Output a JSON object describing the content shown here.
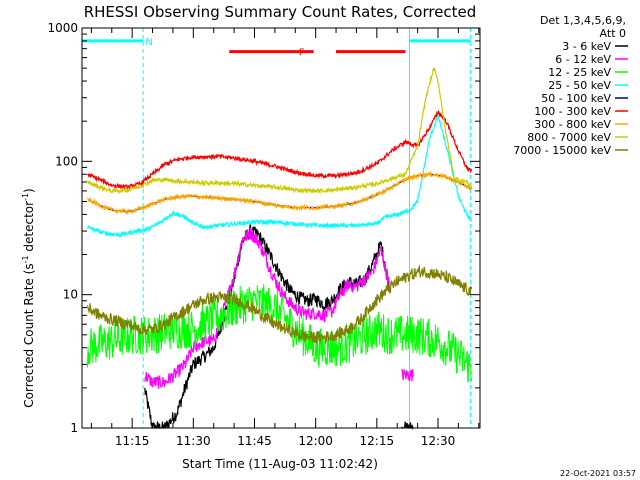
{
  "chart_data": {
    "type": "line",
    "title": "RHESSI Observing Summary Count Rates, Corrected",
    "xlabel": "Start Time (11-Aug-03 11:02:42)",
    "ylabel": "Corrected Count Rate (s",
    "ylabel_sup": "-1",
    "ylabel_mid": " detector",
    "ylabel_sup2": "-1",
    "ylabel_end": ")",
    "y_scale": "log",
    "ylim": [
      1,
      1000
    ],
    "xlim_minutes": [
      662.7,
      760.3
    ],
    "y_ticks": [
      {
        "value": 1,
        "label": "1"
      },
      {
        "value": 10,
        "label": "10"
      },
      {
        "value": 100,
        "label": "100"
      },
      {
        "value": 1000,
        "label": "1000"
      }
    ],
    "x_ticks": [
      {
        "minutes": 675,
        "label": "11:15"
      },
      {
        "minutes": 690,
        "label": "11:30"
      },
      {
        "minutes": 705,
        "label": "11:45"
      },
      {
        "minutes": 720,
        "label": "12:00"
      },
      {
        "minutes": 735,
        "label": "12:15"
      },
      {
        "minutes": 750,
        "label": "12:30"
      }
    ],
    "legend_header": [
      "Det 1,3,4,5,6,9,",
      "Att 0"
    ],
    "legend_placement": "right",
    "series": [
      {
        "name": "3 - 6 keV",
        "color": "#000000",
        "band": "sample",
        "x": [
          664,
          672,
          676,
          678,
          680,
          683,
          686,
          688,
          690,
          693,
          695,
          697,
          700,
          702,
          704,
          706,
          708,
          710,
          712,
          714,
          716,
          718,
          720,
          722,
          724,
          726,
          728,
          730,
          732,
          734,
          736,
          738,
          739,
          741,
          744,
          748,
          752,
          756,
          760
        ],
        "y": [
          null,
          null,
          null,
          2,
          1,
          1,
          1.3,
          2,
          3,
          3.5,
          4,
          6,
          13,
          25,
          30,
          28,
          22,
          17,
          13,
          10.5,
          9.5,
          9,
          9.3,
          8.5,
          9,
          11,
          12.5,
          12,
          13,
          17,
          24,
          12,
          null,
          1,
          1,
          null,
          null,
          null,
          null
        ]
      },
      {
        "name": "6 - 12 keV",
        "color": "#ff00ff",
        "band": "sample",
        "x": [
          664,
          672,
          676,
          678,
          680,
          683,
          686,
          688,
          690,
          693,
          695,
          697,
          700,
          702,
          704,
          706,
          708,
          710,
          712,
          714,
          716,
          718,
          720,
          722,
          724,
          726,
          728,
          730,
          732,
          734,
          736,
          738,
          739,
          741,
          744,
          748,
          752,
          756,
          760
        ],
        "y": [
          null,
          null,
          null,
          2.5,
          2.2,
          2.2,
          2.6,
          3,
          4,
          4.5,
          4.5,
          7,
          14,
          26,
          29,
          25,
          18,
          13,
          10,
          8.5,
          7.5,
          7.2,
          7.3,
          7,
          7.5,
          10,
          12,
          11.5,
          13,
          15,
          22,
          12,
          null,
          2.5,
          2.5,
          null,
          null,
          null,
          null
        ]
      },
      {
        "name": "12 - 25 keV",
        "color": "#00ff00",
        "band": "noisy",
        "x": [
          664,
          670,
          675,
          680,
          685,
          690,
          695,
          700,
          705,
          710,
          715,
          720,
          725,
          730,
          735,
          738,
          740,
          745,
          750,
          755,
          760
        ],
        "y": [
          4,
          4.5,
          5,
          5,
          5.5,
          5.5,
          6.5,
          8,
          9,
          8,
          5.5,
          4,
          4,
          4.5,
          5.5,
          5,
          5,
          5,
          4.5,
          3.5,
          2.5
        ]
      },
      {
        "name": "25 - 50 keV",
        "color": "#00ffff",
        "band": "thin",
        "x": [
          664,
          668,
          672,
          676,
          679,
          682,
          685,
          688,
          690,
          693,
          696,
          700,
          705,
          710,
          715,
          720,
          725,
          730,
          735,
          737,
          740,
          743,
          745,
          748,
          750,
          752,
          755,
          757,
          760
        ],
        "y": [
          32,
          29,
          28,
          30,
          31,
          35,
          41,
          38,
          34,
          32,
          33,
          34,
          35,
          35,
          34,
          33,
          33,
          33,
          34,
          38,
          40,
          43,
          50,
          150,
          220,
          130,
          55,
          40,
          30
        ]
      },
      {
        "name": "50 - 100 keV",
        "color": "#00007f",
        "band": "none",
        "x": [
          664,
          667,
          670,
          674,
          677,
          680,
          683,
          686,
          689,
          692,
          696,
          700,
          705,
          710,
          715,
          720,
          725,
          730,
          735,
          739,
          742,
          745,
          748,
          751,
          754,
          757,
          760
        ],
        "y": [
          52,
          47,
          43,
          42,
          44,
          48,
          52,
          54,
          55,
          54,
          53,
          52,
          50,
          47,
          45,
          45,
          46,
          49,
          56,
          65,
          73,
          78,
          80,
          78,
          72,
          65,
          58
        ]
      },
      {
        "name": "100 - 300 keV",
        "color": "#ff0000",
        "band": "thin",
        "x": [
          664,
          667,
          670,
          674,
          677,
          680,
          683,
          686,
          689,
          692,
          696,
          700,
          705,
          710,
          715,
          720,
          725,
          730,
          735,
          739,
          742,
          745,
          748,
          750,
          752,
          755,
          757,
          760
        ],
        "y": [
          80,
          73,
          66,
          64,
          68,
          80,
          95,
          103,
          107,
          108,
          109,
          106,
          100,
          92,
          83,
          78,
          78,
          82,
          96,
          122,
          140,
          130,
          180,
          235,
          200,
          120,
          90,
          78
        ]
      },
      {
        "name": "300 - 800 keV",
        "color": "#ffa500",
        "band": "thin",
        "x": [
          664,
          667,
          670,
          674,
          677,
          680,
          683,
          686,
          689,
          692,
          696,
          700,
          705,
          710,
          715,
          720,
          725,
          730,
          735,
          739,
          742,
          745,
          748,
          751,
          754,
          757,
          760
        ],
        "y": [
          52,
          47,
          43,
          42,
          44,
          48,
          52,
          54,
          55,
          54,
          53,
          52,
          50,
          47,
          45,
          45,
          46,
          49,
          56,
          65,
          73,
          78,
          80,
          78,
          72,
          65,
          58
        ]
      },
      {
        "name": "800 - 7000 keV",
        "color": "#cccc00",
        "band": "thin",
        "x": [
          664,
          667,
          670,
          674,
          677,
          680,
          683,
          686,
          689,
          692,
          696,
          700,
          705,
          710,
          715,
          720,
          725,
          730,
          735,
          739,
          742,
          745,
          747,
          749,
          750,
          752,
          754,
          757,
          760
        ],
        "y": [
          70,
          64,
          60,
          61,
          65,
          72,
          73,
          71,
          70,
          69,
          69,
          68,
          66,
          64,
          61,
          60,
          61,
          64,
          68,
          75,
          80,
          130,
          300,
          500,
          400,
          160,
          75,
          70,
          58
        ]
      },
      {
        "name": "7000 - 15000 keV",
        "color": "#7f7f00",
        "band": "medium",
        "x": [
          664,
          667,
          670,
          674,
          677,
          680,
          683,
          686,
          689,
          692,
          695,
          698,
          701,
          704,
          707,
          710,
          713,
          716,
          719,
          722,
          725,
          728,
          731,
          734,
          737,
          740,
          743,
          746,
          749,
          752,
          755,
          758,
          760
        ],
        "y": [
          8,
          7,
          6.5,
          6,
          5.5,
          5.5,
          6,
          7,
          8,
          9,
          9.5,
          9.5,
          9,
          8,
          7,
          6,
          5.5,
          5,
          4.8,
          4.8,
          5,
          5.5,
          6.5,
          8.5,
          10.5,
          12.5,
          14,
          15,
          14.5,
          13.5,
          12,
          10.5,
          9.5
        ]
      }
    ],
    "annotations": [
      {
        "label": "N",
        "color": "#00ffff",
        "segments": [
          [
            662.7,
            677.7
          ],
          [
            743,
            758
          ]
        ],
        "y_value": 800
      },
      {
        "label": "F",
        "color": "#ff0000",
        "segments": [
          [
            698.8,
            719.5
          ],
          [
            725,
            742
          ]
        ],
        "y_value": 665
      }
    ],
    "vlines": [
      {
        "minutes": 677.7,
        "color": "#00ffff",
        "style": "dashed"
      },
      {
        "minutes": 743,
        "color": "#00ffff",
        "style": "solid"
      },
      {
        "minutes": 758,
        "color": "#00ffff",
        "style": "dashed"
      }
    ]
  },
  "footer_timestamp": "22-Oct-2021 03:57"
}
